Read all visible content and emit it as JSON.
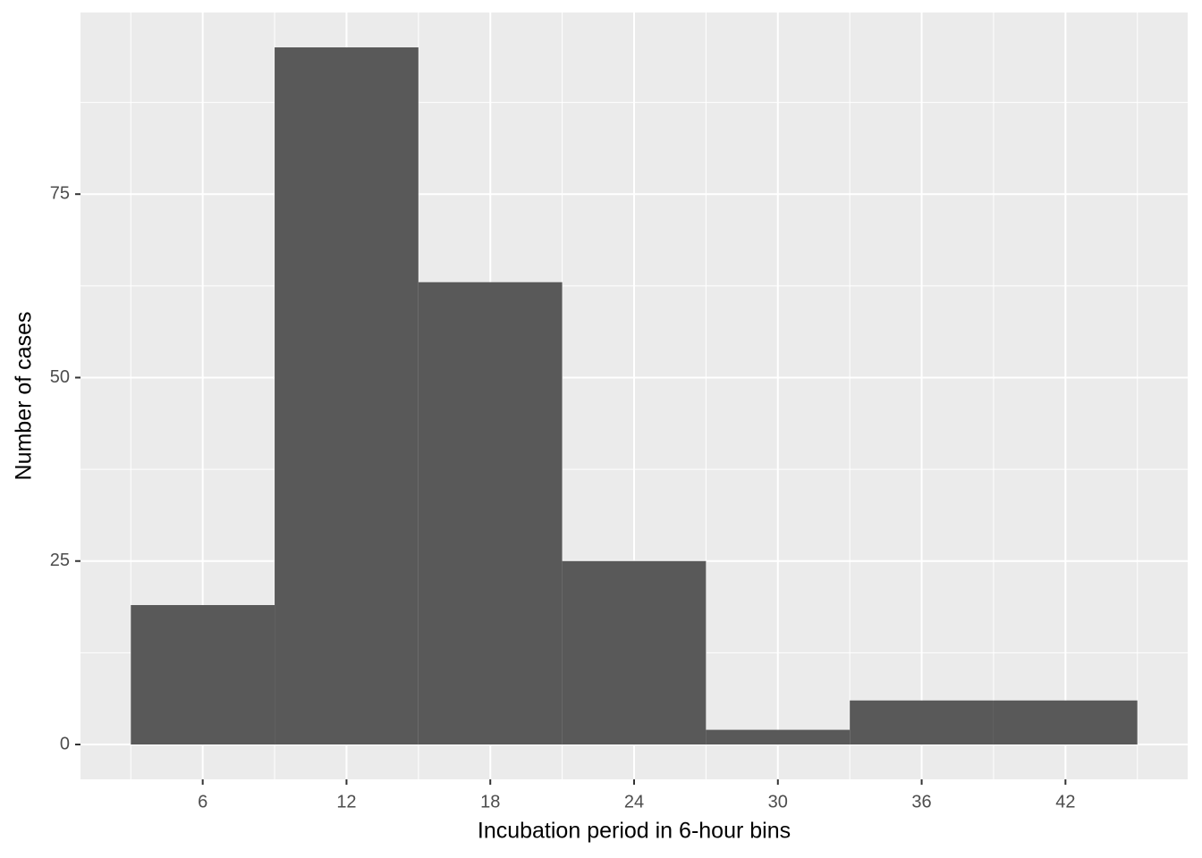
{
  "chart_data": {
    "type": "histogram",
    "x_label": "Incubation period in 6-hour bins",
    "y_label": "Number of cases",
    "bins": [
      3,
      9,
      15,
      21,
      27,
      33,
      39,
      45
    ],
    "values": [
      19,
      95,
      63,
      25,
      2,
      6,
      6
    ],
    "color": "#595959",
    "xlim": [
      0.9,
      47.1
    ],
    "xticks": [
      6,
      12,
      18,
      24,
      30,
      36,
      42
    ],
    "ylim": [
      -4.75,
      99.75
    ],
    "yticks": [
      0,
      25,
      50,
      75
    ],
    "grid": true
  }
}
